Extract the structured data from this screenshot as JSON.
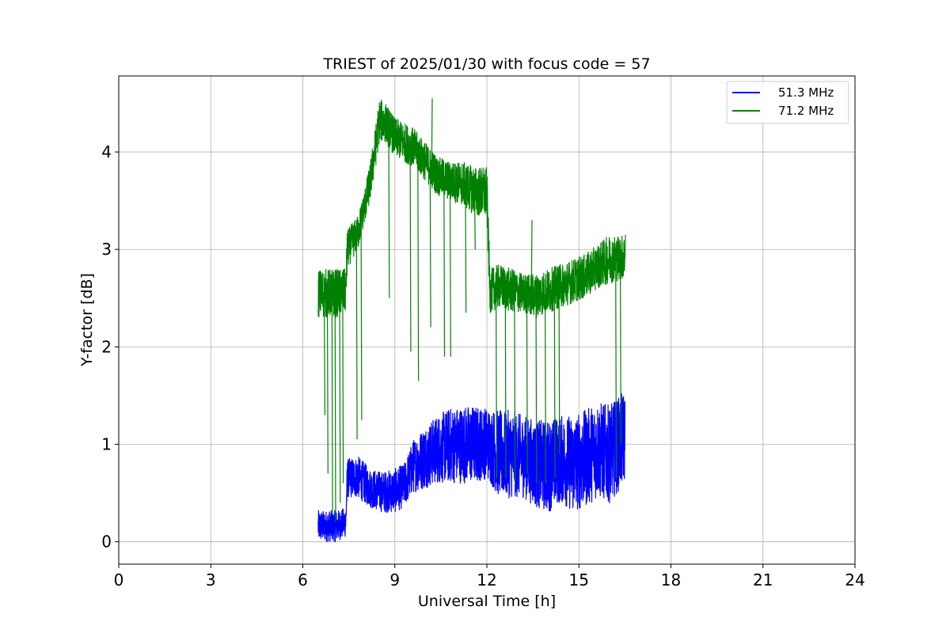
{
  "chart_data": {
    "type": "line",
    "title": "TRIEST of 2025/01/30 with focus code = 57",
    "xlabel": "Universal Time [h]",
    "ylabel": "Y-factor [dB]",
    "xlim": [
      0,
      24
    ],
    "ylim": [
      -0.23,
      4.78
    ],
    "xticks": [
      0,
      3,
      6,
      9,
      12,
      15,
      18,
      21,
      24
    ],
    "yticks": [
      0,
      1,
      2,
      3,
      4
    ],
    "grid": true,
    "legend_position": "top-right",
    "series": [
      {
        "name": "51.3 MHz",
        "color": "#0000ff",
        "x": [
          6.5,
          6.8,
          7.1,
          7.4,
          7.45,
          7.8,
          8.2,
          8.6,
          9.0,
          9.3,
          9.6,
          10.0,
          10.4,
          10.8,
          11.2,
          11.6,
          12.0,
          12.4,
          12.8,
          13.2,
          13.6,
          14.0,
          14.4,
          14.8,
          15.2,
          15.6,
          16.0,
          16.5
        ],
        "y": [
          0.2,
          0.2,
          0.2,
          0.25,
          0.65,
          0.7,
          0.55,
          0.5,
          0.55,
          0.6,
          0.75,
          0.85,
          0.9,
          0.95,
          1.0,
          1.0,
          1.0,
          0.85,
          0.9,
          0.85,
          0.8,
          0.8,
          0.85,
          0.8,
          0.85,
          0.95,
          0.95,
          1.0
        ],
        "lo": [
          0.0,
          0.0,
          0.0,
          0.05,
          0.45,
          0.45,
          0.35,
          0.3,
          0.3,
          0.35,
          0.5,
          0.55,
          0.6,
          0.6,
          0.6,
          0.6,
          0.65,
          0.45,
          0.45,
          0.45,
          0.35,
          0.3,
          0.4,
          0.3,
          0.35,
          0.45,
          0.4,
          0.6
        ],
        "hi": [
          0.32,
          0.32,
          0.32,
          0.35,
          0.85,
          0.88,
          0.75,
          0.72,
          0.75,
          0.8,
          1.05,
          1.2,
          1.3,
          1.38,
          1.4,
          1.4,
          1.38,
          1.35,
          1.35,
          1.3,
          1.25,
          1.25,
          1.3,
          1.3,
          1.35,
          1.45,
          1.4,
          1.55
        ]
      },
      {
        "name": "71.2 MHz",
        "color": "#008000",
        "x": [
          6.5,
          6.8,
          7.1,
          7.4,
          7.45,
          7.8,
          8.0,
          8.2,
          8.5,
          8.7,
          9.0,
          9.3,
          9.6,
          10.0,
          10.4,
          10.8,
          11.2,
          11.6,
          12.0,
          12.1,
          12.4,
          12.8,
          13.2,
          13.6,
          14.0,
          14.4,
          14.8,
          15.2,
          15.6,
          16.0,
          16.5
        ],
        "y": [
          2.5,
          2.5,
          2.5,
          2.55,
          2.95,
          3.15,
          3.4,
          3.7,
          4.3,
          4.3,
          4.15,
          4.1,
          4.05,
          3.9,
          3.75,
          3.7,
          3.65,
          3.6,
          3.55,
          2.55,
          2.6,
          2.55,
          2.55,
          2.5,
          2.55,
          2.6,
          2.65,
          2.7,
          2.8,
          2.85,
          2.9
        ],
        "lo": [
          2.3,
          2.3,
          2.3,
          2.35,
          2.8,
          3.0,
          3.25,
          3.5,
          4.1,
          4.1,
          3.95,
          3.9,
          3.85,
          3.7,
          3.55,
          3.5,
          3.45,
          3.35,
          3.3,
          2.35,
          2.4,
          2.35,
          2.35,
          2.3,
          2.35,
          2.4,
          2.45,
          2.5,
          2.6,
          2.65,
          2.7
        ],
        "hi": [
          2.8,
          2.8,
          2.8,
          2.8,
          3.2,
          3.35,
          3.6,
          3.9,
          4.55,
          4.5,
          4.35,
          4.3,
          4.25,
          4.1,
          3.95,
          3.9,
          3.9,
          3.85,
          3.85,
          2.8,
          2.85,
          2.8,
          2.75,
          2.75,
          2.8,
          2.85,
          2.9,
          2.95,
          3.05,
          3.15,
          3.15
        ],
        "dips": [
          [
            6.7,
            1.3
          ],
          [
            6.8,
            0.7
          ],
          [
            6.95,
            0.3
          ],
          [
            7.05,
            0.2
          ],
          [
            7.2,
            0.4
          ],
          [
            7.3,
            0.6
          ],
          [
            7.75,
            1.05
          ],
          [
            7.9,
            1.25
          ],
          [
            8.8,
            2.5
          ],
          [
            9.5,
            1.95
          ],
          [
            9.75,
            1.65
          ],
          [
            10.15,
            2.2
          ],
          [
            10.6,
            1.9
          ],
          [
            10.8,
            1.9
          ],
          [
            11.3,
            2.35
          ],
          [
            11.6,
            3.0
          ],
          [
            12.3,
            0.65
          ],
          [
            12.6,
            0.65
          ],
          [
            12.9,
            0.6
          ],
          [
            13.3,
            0.7
          ],
          [
            13.6,
            0.6
          ],
          [
            13.9,
            0.6
          ],
          [
            14.2,
            0.65
          ],
          [
            14.35,
            0.9
          ],
          [
            16.2,
            0.65
          ],
          [
            16.35,
            1.0
          ]
        ],
        "spikes": [
          [
            10.2,
            4.55
          ],
          [
            13.45,
            3.3
          ],
          [
            16.5,
            3.15
          ]
        ]
      }
    ]
  }
}
